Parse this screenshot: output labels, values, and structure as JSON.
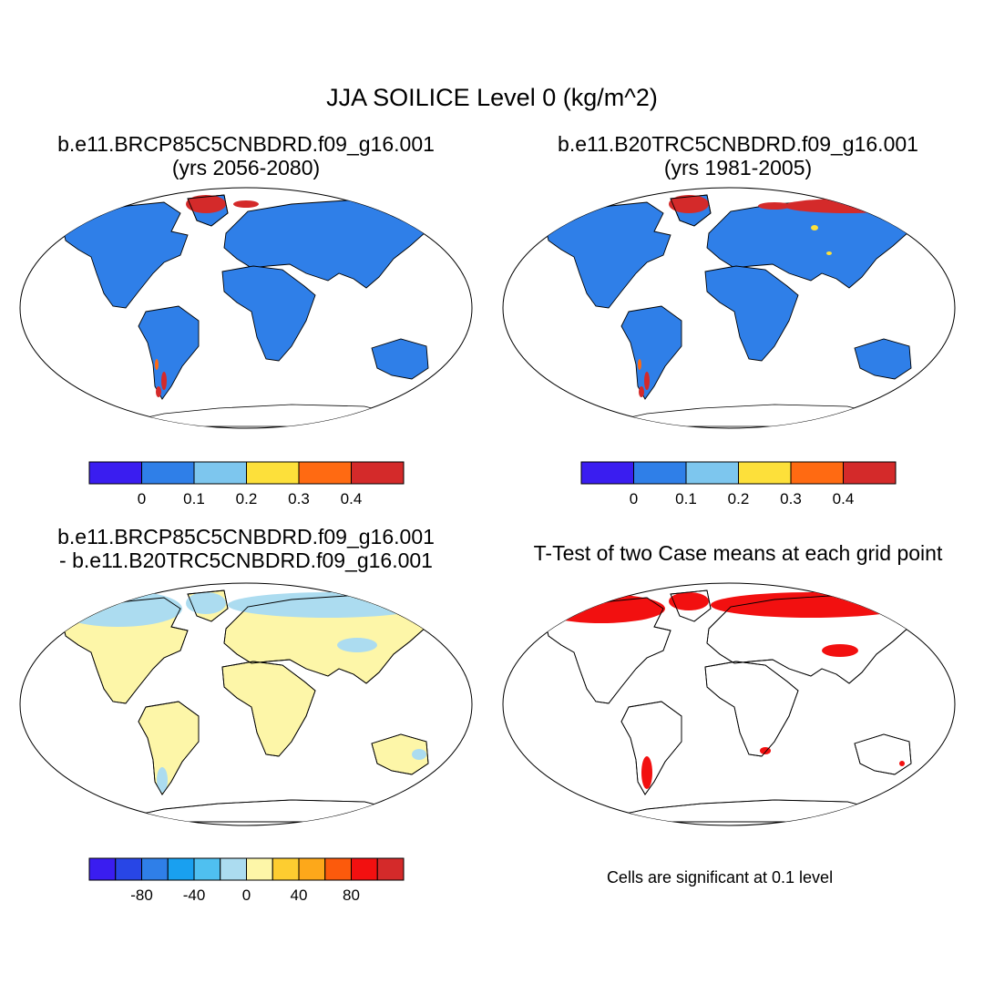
{
  "title": "JJA SOILICE Level 0 (kg/m^2)",
  "panels": [
    {
      "id": "case1",
      "title_line1": "b.e11.BRCP85C5CNBDRD.f09_g16.001",
      "title_line2": "(yrs 2056-2080)",
      "colorbar": {
        "colors": [
          "#3a1df0",
          "#2f7fe8",
          "#7dc6ee",
          "#fde03a",
          "#ff6a12",
          "#d42a2a"
        ],
        "labels": [
          "0",
          "0.1",
          "0.2",
          "0.3",
          "0.4"
        ]
      },
      "land_fill": "#2f7fe8"
    },
    {
      "id": "case2",
      "title_line1": "b.e11.B20TRC5CNBDRD.f09_g16.001",
      "title_line2": "(yrs 1981-2005)",
      "colorbar": {
        "colors": [
          "#3a1df0",
          "#2f7fe8",
          "#7dc6ee",
          "#fde03a",
          "#ff6a12",
          "#d42a2a"
        ],
        "labels": [
          "0",
          "0.1",
          "0.2",
          "0.3",
          "0.4"
        ]
      },
      "land_fill": "#2f7fe8"
    },
    {
      "id": "diff",
      "title_line1": "b.e11.BRCP85C5CNBDRD.f09_g16.001",
      "title_line2": "- b.e11.B20TRC5CNBDRD.f09_g16.001",
      "colorbar": {
        "colors": [
          "#3a1df0",
          "#2846e6",
          "#2f7fe8",
          "#19a0f0",
          "#4fc0f0",
          "#acdcf0",
          "#fdf6a8",
          "#fdcd30",
          "#fda81a",
          "#fc5a0c",
          "#f21010",
          "#d42a2a"
        ],
        "labels": [
          "-80",
          "-40",
          "0",
          "40",
          "80"
        ]
      },
      "land_fill": "#fdf6a8"
    },
    {
      "id": "ttest",
      "title_line1": "T-Test of two Case means at each grid point",
      "title_line2": "",
      "land_fill": "#ffffff",
      "sig_color": "#f21010"
    }
  ],
  "note": "Cells are significant at 0.1 level"
}
